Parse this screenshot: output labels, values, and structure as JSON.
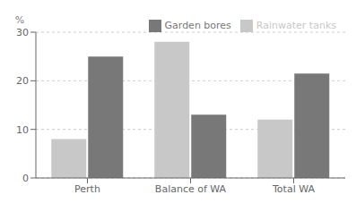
{
  "chart_data": {
    "type": "bar",
    "ylabel": "%",
    "categories": [
      "Perth",
      "Balance of WA",
      "Total WA"
    ],
    "series": [
      {
        "name": "Rainwater tanks",
        "color": "#c8c8c8",
        "values": [
          8,
          28,
          12
        ]
      },
      {
        "name": "Garden bores",
        "color": "#787878",
        "values": [
          25,
          13,
          21.5
        ]
      }
    ],
    "ylim": [
      0,
      30
    ],
    "yticks": [
      0,
      10,
      20,
      30
    ],
    "grid": true,
    "legend": "upper right"
  }
}
